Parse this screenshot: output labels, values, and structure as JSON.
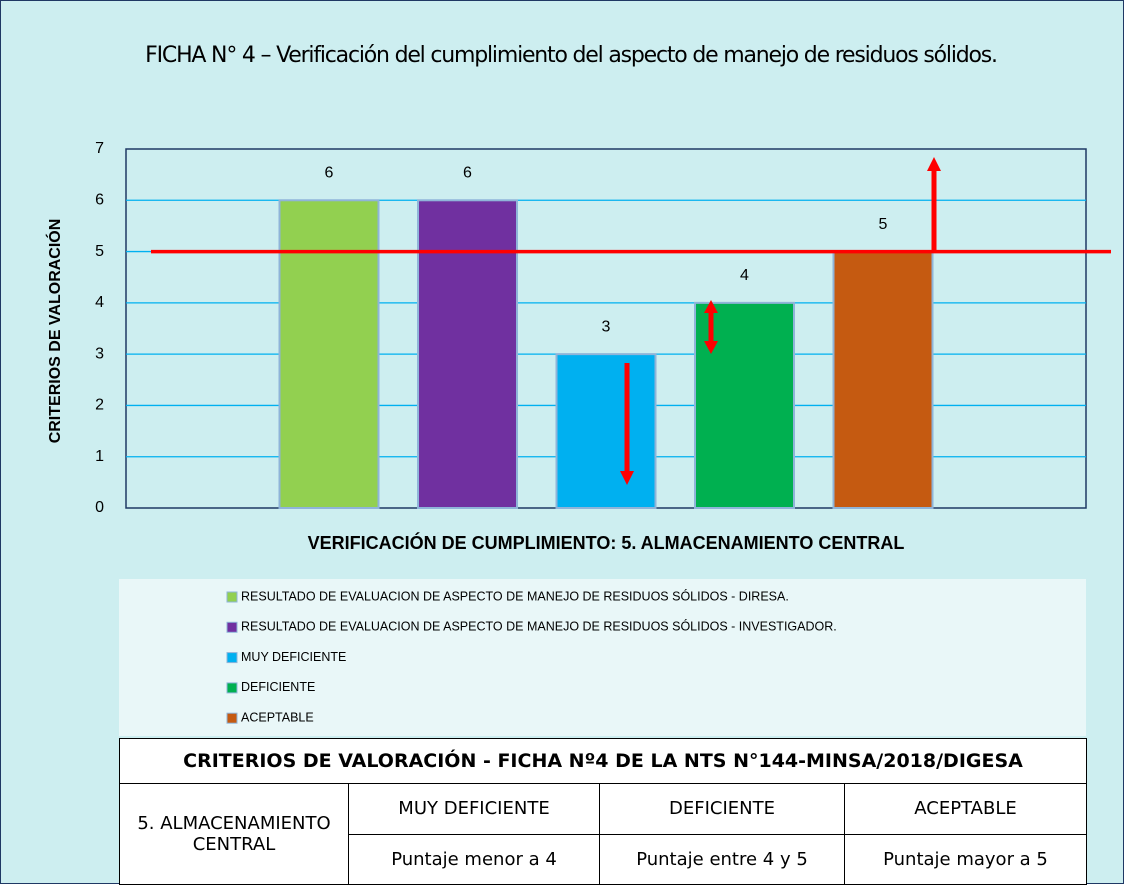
{
  "chart_data": {
    "type": "bar",
    "title": "FICHA N° 4 – Verificación del cumplimiento del aspecto de manejo de residuos sólidos.",
    "y_label": "CRITERIOS DE VALORACIÓN",
    "x_label": "VERIFICACIÓN DE CUMPLIMIENTO: 5. ALMACENAMIENTO CENTRAL",
    "categories": [
      null
    ],
    "series": [
      {
        "name": "RESULTADO DE EVALUACION DE ASPECTO DE MANEJO DE RESIDUOS SÓLIDOS - DIRESA.",
        "color": "#92d050",
        "values": [
          6
        ]
      },
      {
        "name": "RESULTADO DE EVALUACION DE ASPECTO DE MANEJO DE RESIDUOS SÓLIDOS - INVESTIGADOR.",
        "color": "#7030a0",
        "values": [
          6
        ]
      },
      {
        "name": "MUY DEFICIENTE",
        "color": "#00b0f0",
        "values": [
          3
        ]
      },
      {
        "name": "DEFICIENTE",
        "color": "#00b050",
        "values": [
          4
        ]
      },
      {
        "name": "ACEPTABLE",
        "color": "#c55a11",
        "values": [
          5
        ]
      }
    ],
    "ylim": [
      0,
      7
    ],
    "yticks": [
      0,
      1,
      2,
      3,
      4,
      5,
      6,
      7
    ],
    "grid": true,
    "grid_color": "#00b0f0",
    "reference_line": {
      "value": 5,
      "color": "#ff0000"
    },
    "legend": "bottom"
  },
  "table": {
    "title": "CRITERIOS DE VALORACIÓN - FICHA Nº4 DE LA NTS N°144-MINSA/2018/DIGESA",
    "rows": [
      [
        "5. ALMACENAMIENTO CENTRAL",
        "MUY DEFICIENTE",
        "DEFICIENTE",
        "ACEPTABLE"
      ],
      [
        "Puntaje menor a 4",
        "Puntaje entre 4 y 5",
        "Puntaje mayor a 5"
      ]
    ]
  }
}
